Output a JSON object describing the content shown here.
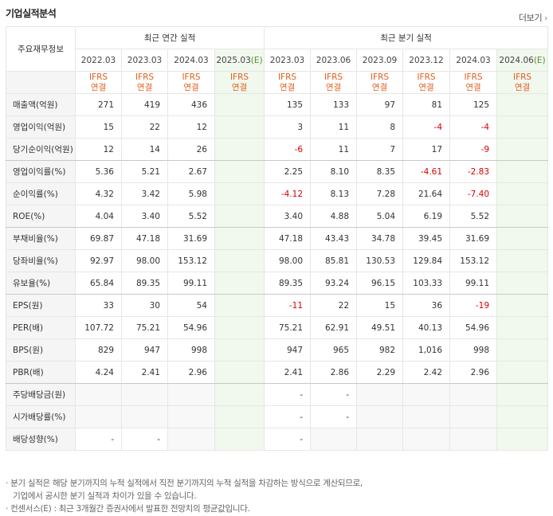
{
  "header": {
    "title": "기업실적분석",
    "more_label": "더보기"
  },
  "table": {
    "label_header": "주요재무정보",
    "annual_group": "최근 연간 실적",
    "quarter_group": "최근 분기 실적",
    "annual_periods": [
      "2022.03",
      "2023.03",
      "2024.03",
      "2025.03"
    ],
    "quarter_periods": [
      "2023.03",
      "2023.06",
      "2023.09",
      "2023.12",
      "2024.03",
      "2024.06"
    ],
    "estimate_mark": "(E)",
    "ifrs_line1": "IFRS",
    "ifrs_line2": "연결",
    "rows": [
      {
        "label": "매출액(억원)",
        "annual": [
          "271",
          "419",
          "436",
          ""
        ],
        "quarter": [
          "135",
          "133",
          "97",
          "81",
          "125",
          ""
        ]
      },
      {
        "label": "영업이익(억원)",
        "annual": [
          "15",
          "22",
          "12",
          ""
        ],
        "quarter": [
          "3",
          "11",
          "8",
          "-4",
          "-4",
          ""
        ]
      },
      {
        "label": "당기순이익(억원)",
        "annual": [
          "12",
          "14",
          "26",
          ""
        ],
        "quarter": [
          "-6",
          "11",
          "7",
          "17",
          "-9",
          ""
        ]
      },
      {
        "label": "영업이익률(%)",
        "annual": [
          "5.36",
          "5.21",
          "2.67",
          ""
        ],
        "quarter": [
          "2.25",
          "8.10",
          "8.35",
          "-4.61",
          "-2.83",
          ""
        ]
      },
      {
        "label": "순이익률(%)",
        "annual": [
          "4.32",
          "3.42",
          "5.98",
          ""
        ],
        "quarter": [
          "-4.12",
          "8.13",
          "7.28",
          "21.64",
          "-7.40",
          ""
        ]
      },
      {
        "label": "ROE(%)",
        "annual": [
          "4.04",
          "3.40",
          "5.52",
          ""
        ],
        "quarter": [
          "3.40",
          "4.88",
          "5.04",
          "6.19",
          "5.52",
          ""
        ]
      },
      {
        "label": "부채비율(%)",
        "annual": [
          "69.87",
          "47.18",
          "31.69",
          ""
        ],
        "quarter": [
          "47.18",
          "43.43",
          "34.78",
          "39.45",
          "31.69",
          ""
        ]
      },
      {
        "label": "당좌비율(%)",
        "annual": [
          "92.97",
          "98.00",
          "153.12",
          ""
        ],
        "quarter": [
          "98.00",
          "85.81",
          "130.53",
          "129.84",
          "153.12",
          ""
        ]
      },
      {
        "label": "유보율(%)",
        "annual": [
          "65.84",
          "89.35",
          "99.11",
          ""
        ],
        "quarter": [
          "89.35",
          "93.24",
          "96.15",
          "103.33",
          "99.11",
          ""
        ]
      },
      {
        "label": "EPS(원)",
        "annual": [
          "33",
          "30",
          "54",
          ""
        ],
        "quarter": [
          "-11",
          "22",
          "15",
          "36",
          "-19",
          ""
        ]
      },
      {
        "label": "PER(배)",
        "annual": [
          "107.72",
          "75.21",
          "54.96",
          ""
        ],
        "quarter": [
          "75.21",
          "62.91",
          "49.51",
          "40.13",
          "54.96",
          ""
        ]
      },
      {
        "label": "BPS(원)",
        "annual": [
          "829",
          "947",
          "998",
          ""
        ],
        "quarter": [
          "947",
          "965",
          "982",
          "1,016",
          "998",
          ""
        ]
      },
      {
        "label": "PBR(배)",
        "annual": [
          "4.24",
          "2.41",
          "2.96",
          ""
        ],
        "quarter": [
          "2.41",
          "2.86",
          "2.29",
          "2.42",
          "2.96",
          ""
        ]
      },
      {
        "label": "주당배당금(원)",
        "annual": [
          "",
          "",
          "",
          ""
        ],
        "quarter": [
          "-",
          "-",
          "",
          "",
          "",
          ""
        ]
      },
      {
        "label": "시가배당률(%)",
        "annual": [
          "",
          "",
          "",
          ""
        ],
        "quarter": [
          "-",
          "-",
          "",
          "",
          "",
          ""
        ]
      },
      {
        "label": "배당성향(%)",
        "annual": [
          "-",
          "-",
          "",
          ""
        ],
        "quarter": [
          "-",
          "",
          "",
          "",
          "",
          ""
        ]
      }
    ]
  },
  "notes": [
    "· 분기 실적은 해당 분기까지의 누적 실적에서 직전 분기까지의 누적 실적을 차감하는 방식으로 계산되므로,",
    "   기업에서 공시한 분기 실적과 차이가 있을 수 있습니다.",
    "· 컨센서스(E) : 최근 3개월간 증권사에서 발표한 전망치의 평균값입니다."
  ],
  "colors": {
    "negative": "#d80000",
    "ifrs": "#e35d1d",
    "estimate_bg": "#f1f8ed",
    "estimate_mark": "#5e8b2f"
  }
}
